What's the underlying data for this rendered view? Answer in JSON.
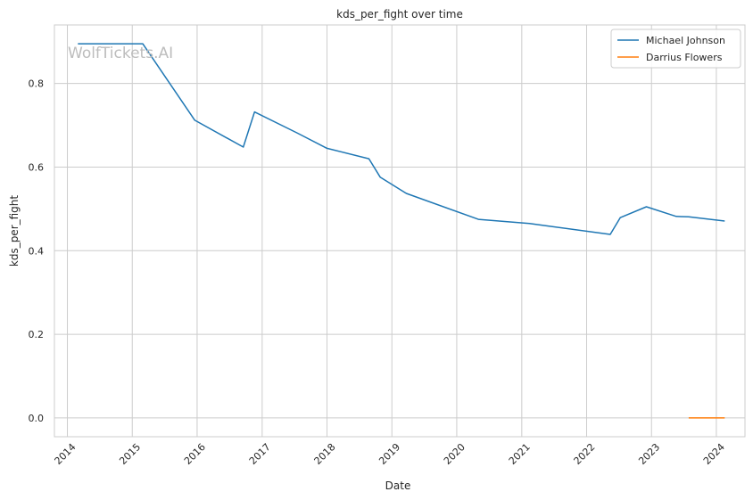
{
  "chart_data": {
    "type": "line",
    "title": "kds_per_fight over time",
    "xlabel": "Date",
    "ylabel": "kds_per_fight",
    "x_ticks": [
      "2014",
      "2015",
      "2016",
      "2017",
      "2018",
      "2019",
      "2020",
      "2021",
      "2022",
      "2023",
      "2024"
    ],
    "y_ticks": [
      "0.0",
      "0.2",
      "0.4",
      "0.6",
      "0.8"
    ],
    "xlim": [
      "2013-10-20",
      "2024-06-10"
    ],
    "ylim": [
      -0.045,
      0.94
    ],
    "grid": true,
    "legend_position": "top-right",
    "watermark": "WolfTickets.AI",
    "series": [
      {
        "name": "Michael Johnson",
        "color": "#1f77b4",
        "points": [
          [
            "2014-03-01",
            0.895
          ],
          [
            "2015-03-01",
            0.895
          ],
          [
            "2015-12-19",
            0.712
          ],
          [
            "2016-09-17",
            0.648
          ],
          [
            "2016-11-19",
            0.732
          ],
          [
            "2017-07-15",
            0.682
          ],
          [
            "2018-01-01",
            0.645
          ],
          [
            "2018-08-25",
            0.62
          ],
          [
            "2018-10-27",
            0.576
          ],
          [
            "2019-03-23",
            0.537
          ],
          [
            "2020-05-02",
            0.475
          ],
          [
            "2021-02-13",
            0.465
          ],
          [
            "2022-05-14",
            0.439
          ],
          [
            "2022-07-09",
            0.479
          ],
          [
            "2022-12-03",
            0.505
          ],
          [
            "2023-05-20",
            0.482
          ],
          [
            "2023-07-29",
            0.481
          ],
          [
            "2024-02-17",
            0.471
          ]
        ]
      },
      {
        "name": "Darrius Flowers",
        "color": "#ff7f0e",
        "points": [
          [
            "2023-07-29",
            0.0
          ],
          [
            "2024-02-17",
            0.0
          ]
        ]
      }
    ]
  }
}
